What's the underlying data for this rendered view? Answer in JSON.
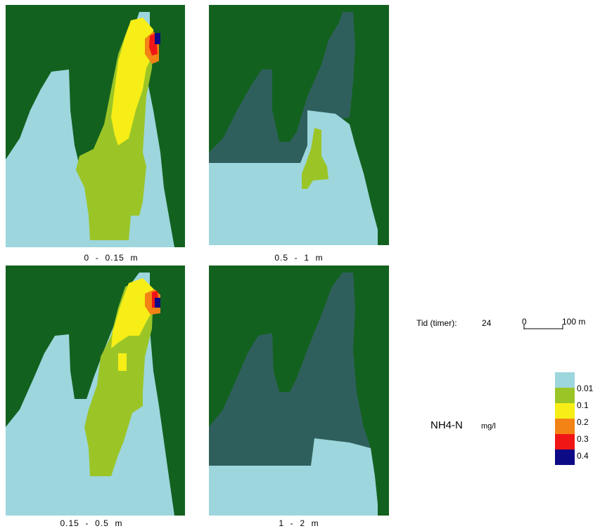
{
  "colors": {
    "land": "#13611f",
    "layer_dark": "#2f5f5c",
    "c001": "#9dd6dd",
    "c01": "#9bc527",
    "c02": "#f6ee16",
    "c03": "#f28314",
    "c04": "#f01616",
    "c05": "#0d0a85"
  },
  "panels": [
    {
      "caption": "0  -  0.15  m"
    },
    {
      "caption": "0.5  -  1  m"
    },
    {
      "caption": "0.15  -  0.5  m"
    },
    {
      "caption": "1  -  2  m"
    }
  ],
  "info": {
    "time_label": "Tid (timer):",
    "time_value": "24"
  },
  "scale_bar": {
    "start": "0",
    "end": "100 m"
  },
  "parameter": {
    "name": "NH4-N",
    "unit": "mg/l"
  },
  "legend": {
    "items": [
      {
        "label": "0.01",
        "color": "#9dd6dd"
      },
      {
        "label": "0.1",
        "color": "#9bc527"
      },
      {
        "label": "0.2",
        "color": "#f6ee16"
      },
      {
        "label": "0.3",
        "color": "#f28314"
      },
      {
        "label": "0.4",
        "color": "#f01616"
      },
      {
        "label": "",
        "color": "#0d0a85"
      }
    ]
  }
}
